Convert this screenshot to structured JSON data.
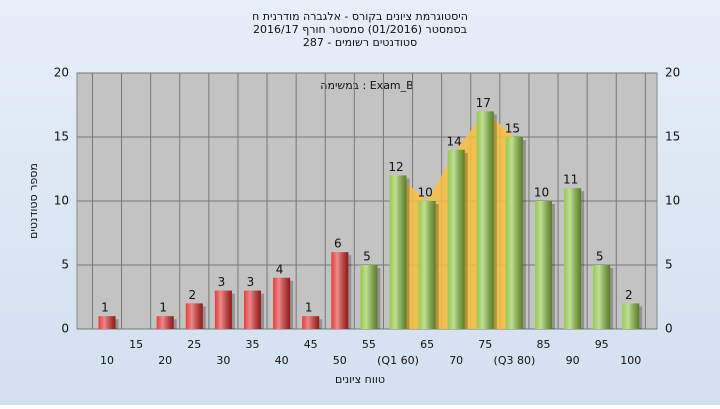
{
  "chart_data": {
    "type": "bar",
    "title": "היסטוגרמת ציונים בקורס - אלגברה מודרנית ח",
    "subtitle": "בסמסטר (01/2016) סמסטר חורף 2016/17",
    "subtitle2": "סטודנטים רשומים - 287",
    "annotation": "במשימה : Exam_B",
    "y_label": "מספר סטודנטים",
    "x_label": "טווח ציונים",
    "categories": [
      "10",
      "15",
      "20",
      "25",
      "30",
      "35",
      "40",
      "45",
      "50",
      "55",
      "(Q1 60)",
      "65",
      "70",
      "75",
      "(Q3 80)",
      "85",
      "90",
      "95",
      "100"
    ],
    "values": [
      1,
      0,
      1,
      2,
      3,
      3,
      4,
      1,
      6,
      5,
      12,
      10,
      14,
      17,
      15,
      10,
      11,
      5,
      2
    ],
    "colors": [
      "#e02828",
      "#e02828",
      "#e02828",
      "#e02828",
      "#e02828",
      "#e02828",
      "#e02828",
      "#e02828",
      "#e02828",
      "#8cc43c",
      "#8cc43c",
      "#8cc43c",
      "#8cc43c",
      "#8cc43c",
      "#8cc43c",
      "#8cc43c",
      "#8cc43c",
      "#8cc43c",
      "#8cc43c"
    ],
    "quartile_color": "#f8c040",
    "ylim": [
      0,
      20
    ],
    "yticks": [
      0,
      5,
      10,
      15,
      20
    ],
    "grid": true
  }
}
